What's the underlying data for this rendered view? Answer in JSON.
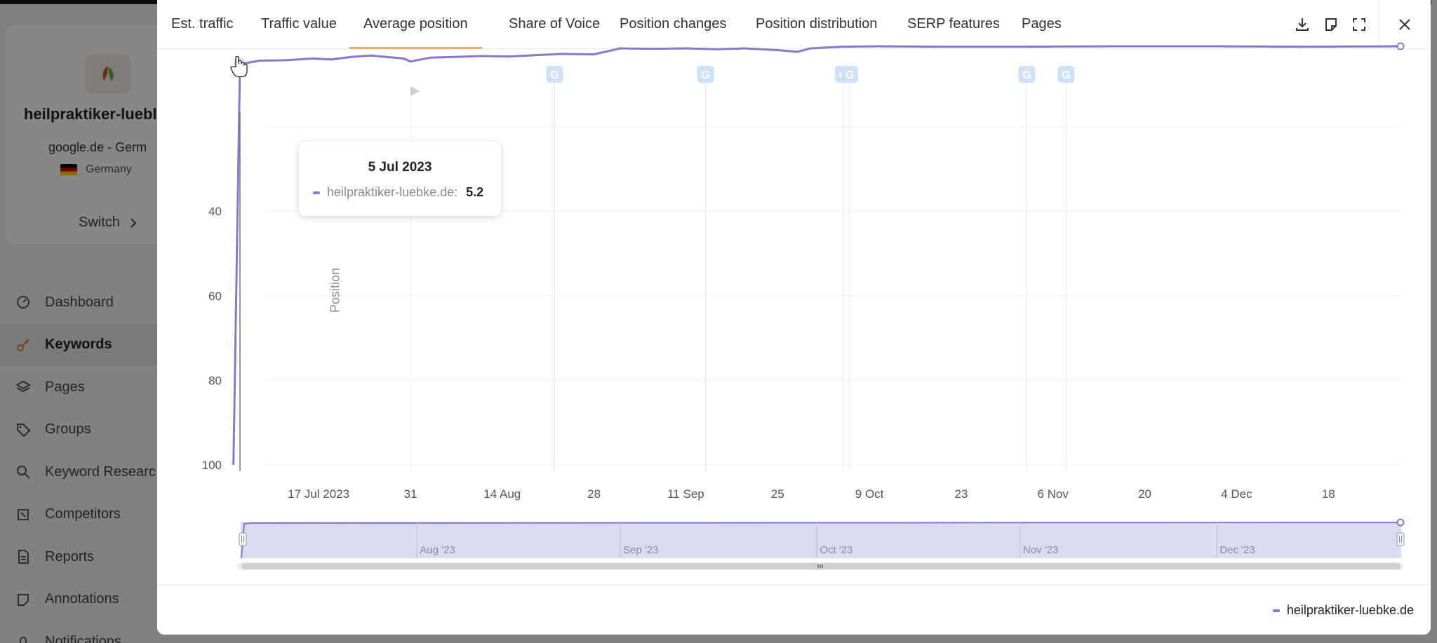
{
  "app": {
    "project": {
      "name": "heilpraktiker-luebl",
      "engine": "google.de - Germ",
      "country": "Germany",
      "switch_label": "Switch"
    },
    "nav": [
      {
        "label": "Dashboard",
        "icon": "dashboard-icon"
      },
      {
        "label": "Keywords",
        "icon": "key-icon",
        "active": true
      },
      {
        "label": "Pages",
        "icon": "layers-icon"
      },
      {
        "label": "Groups",
        "icon": "tag-icon"
      },
      {
        "label": "Keyword Researc",
        "icon": "search-icon"
      },
      {
        "label": "Competitors",
        "icon": "competitors-icon"
      },
      {
        "label": "Reports",
        "icon": "report-icon"
      },
      {
        "label": "Annotations",
        "icon": "annotation-icon"
      },
      {
        "label": "Notifications",
        "icon": "bell-icon"
      }
    ]
  },
  "modal": {
    "tabs": [
      {
        "label": "Est. traffic"
      },
      {
        "label": "Traffic value"
      },
      {
        "label": "Average position",
        "active": true
      },
      {
        "label": "Share of Voice"
      },
      {
        "label": "Position changes"
      },
      {
        "label": "Position distribution"
      },
      {
        "label": "SERP features"
      },
      {
        "label": "Pages"
      }
    ],
    "tools": [
      "download-icon",
      "note-icon",
      "fullscreen-icon",
      "close-icon"
    ]
  },
  "tooltip": {
    "date": "5 Jul 2023",
    "series_name": "heilpraktiker-luebke.de:",
    "value": "5.2"
  },
  "legend": {
    "label": "heilpraktiker-luebke.de"
  },
  "colors": {
    "series": "#8878c8",
    "accent": "#f2a66a",
    "marker_bg": "#cfe1f7",
    "marker_fg": "#6aa3e6",
    "navigator_fill": "#d5d8ee"
  },
  "chart_data": {
    "type": "line",
    "ylabel": "Position",
    "y_reversed": true,
    "ylim": [
      0,
      100
    ],
    "y_ticks": [
      "40",
      "60",
      "80",
      "100"
    ],
    "x_start": "2023-07-05",
    "x_end": "2023-12-29",
    "x_tick_labels": [
      {
        "date": "2023-07-17",
        "label": "17 Jul 2023"
      },
      {
        "date": "2023-07-31",
        "label": "31"
      },
      {
        "date": "2023-08-14",
        "label": "14 Aug"
      },
      {
        "date": "2023-08-28",
        "label": "28"
      },
      {
        "date": "2023-09-11",
        "label": "11 Sep"
      },
      {
        "date": "2023-09-25",
        "label": "25"
      },
      {
        "date": "2023-10-09",
        "label": "9 Oct"
      },
      {
        "date": "2023-10-23",
        "label": "23"
      },
      {
        "date": "2023-11-06",
        "label": "6 Nov"
      },
      {
        "date": "2023-11-20",
        "label": "20"
      },
      {
        "date": "2023-12-04",
        "label": "4 Dec"
      },
      {
        "date": "2023-12-18",
        "label": "18"
      }
    ],
    "google_updates": [
      "2023-08-22",
      "2023-09-14",
      "2023-10-05",
      "2023-10-06",
      "2023-11-02",
      "2023-11-08"
    ],
    "annotation_flags": [
      "2023-07-31"
    ],
    "navigator_labels": [
      {
        "date": "2023-08-01",
        "label": "Aug '23"
      },
      {
        "date": "2023-09-01",
        "label": "Sep '23"
      },
      {
        "date": "2023-10-01",
        "label": "Oct '23"
      },
      {
        "date": "2023-11-01",
        "label": "Nov '23"
      },
      {
        "date": "2023-12-01",
        "label": "Dec '23"
      }
    ],
    "series": [
      {
        "name": "heilpraktiker-luebke.de",
        "points": [
          [
            "2023-07-04",
            100
          ],
          [
            "2023-07-05",
            5.2
          ],
          [
            "2023-07-08",
            4.4
          ],
          [
            "2023-07-12",
            4.3
          ],
          [
            "2023-07-16",
            3.9
          ],
          [
            "2023-07-19",
            4.1
          ],
          [
            "2023-07-22",
            3.5
          ],
          [
            "2023-07-25",
            3.2
          ],
          [
            "2023-07-28",
            3.6
          ],
          [
            "2023-07-30",
            3.9
          ],
          [
            "2023-07-31",
            4.6
          ],
          [
            "2023-08-03",
            3.7
          ],
          [
            "2023-08-07",
            3.5
          ],
          [
            "2023-08-11",
            3.3
          ],
          [
            "2023-08-15",
            3.4
          ],
          [
            "2023-08-19",
            3.1
          ],
          [
            "2023-08-23",
            2.8
          ],
          [
            "2023-08-28",
            2.9
          ],
          [
            "2023-09-01",
            1.5
          ],
          [
            "2023-09-06",
            1.6
          ],
          [
            "2023-09-11",
            1.5
          ],
          [
            "2023-09-16",
            1.7
          ],
          [
            "2023-09-20",
            1.5
          ],
          [
            "2023-09-25",
            1.9
          ],
          [
            "2023-09-28",
            2.3
          ],
          [
            "2023-09-30",
            1.5
          ],
          [
            "2023-10-05",
            1.1
          ],
          [
            "2023-10-10",
            1.0
          ],
          [
            "2023-10-20",
            1.1
          ],
          [
            "2023-11-01",
            1.1
          ],
          [
            "2023-11-15",
            1.0
          ],
          [
            "2023-12-01",
            1.0
          ],
          [
            "2023-12-15",
            1.1
          ],
          [
            "2023-12-29",
            1.0
          ]
        ]
      }
    ],
    "highlighted_point": {
      "date": "2023-07-05",
      "value": 5.2
    }
  }
}
